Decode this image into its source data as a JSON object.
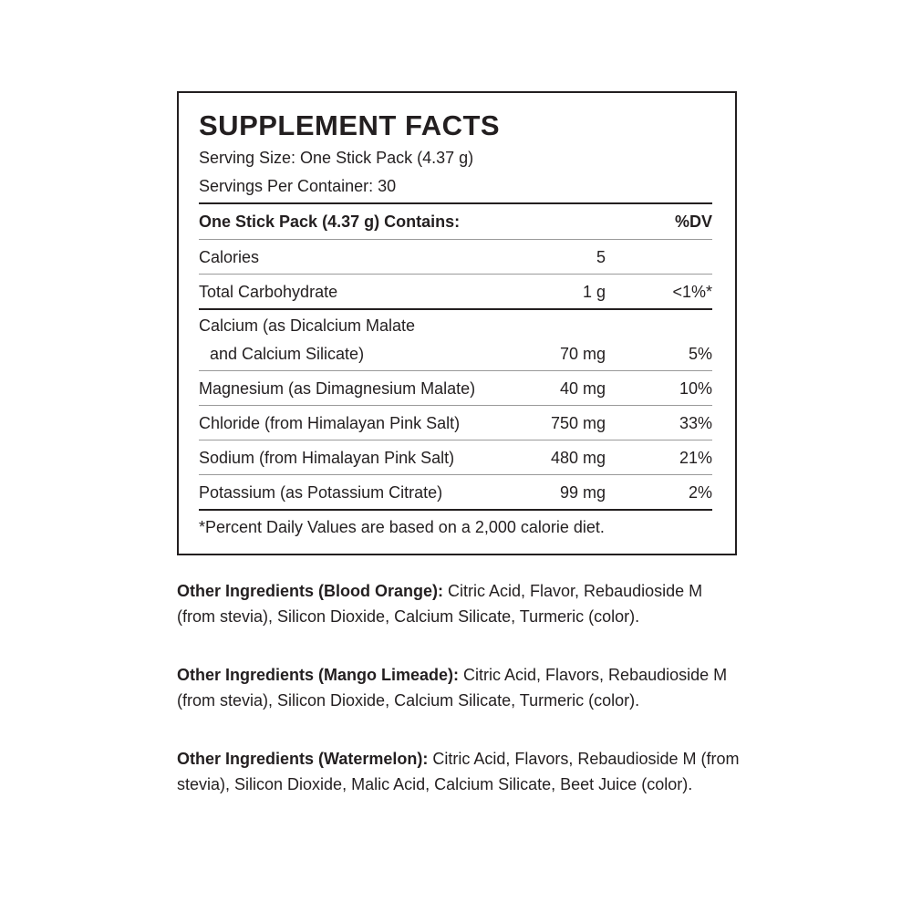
{
  "facts": {
    "title": "SUPPLEMENT FACTS",
    "serving_size": "Serving Size: One Stick Pack (4.37 g)",
    "servings_per_container": "Servings Per Container: 30",
    "header": {
      "label": "One Stick Pack (4.37 g) Contains:",
      "dv": "%DV"
    },
    "rows": [
      {
        "name": "Calories",
        "amount": "5",
        "dv": ""
      },
      {
        "name": "Total Carbohydrate",
        "amount": "1 g",
        "dv": "<1%*"
      },
      {
        "name": "Calcium (as Dicalcium Malate",
        "name2": "and Calcium Silicate)",
        "amount": "70 mg",
        "dv": "5%"
      },
      {
        "name": "Magnesium (as Dimagnesium Malate)",
        "amount": "40 mg",
        "dv": "10%"
      },
      {
        "name": "Chloride (from Himalayan Pink Salt)",
        "amount": "750 mg",
        "dv": "33%"
      },
      {
        "name": "Sodium (from Himalayan Pink Salt)",
        "amount": "480 mg",
        "dv": "21%"
      },
      {
        "name": "Potassium (as Potassium Citrate)",
        "amount": "99 mg",
        "dv": "2%"
      }
    ],
    "footnote": "*Percent Daily Values are based on a 2,000 calorie diet."
  },
  "ingredients": [
    {
      "label": "Other Ingredients (Blood Orange):",
      "text": " Citric Acid, Flavor, Rebaudioside M (from stevia), Silicon Dioxide, Calcium Silicate, Turmeric (color)."
    },
    {
      "label": "Other Ingredients (Mango Limeade):",
      "text": " Citric Acid, Flavors, Rebaudioside M (from stevia), Silicon Dioxide, Calcium Silicate, Turmeric (color)."
    },
    {
      "label": "Other Ingredients (Watermelon):",
      "text": " Citric Acid, Flavors, Rebau­dioside M (from stevia), Silicon Dioxide, Malic Acid, Calcium Silicate, Beet Juice (color)."
    }
  ]
}
